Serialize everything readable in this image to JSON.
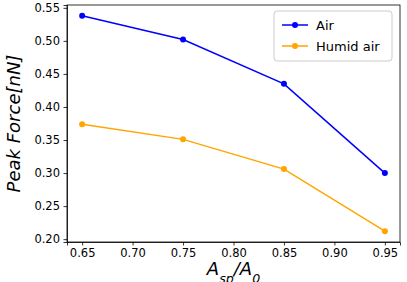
{
  "chart_data": {
    "type": "line",
    "x_label": "Asp/A0",
    "y_label": "Peak Force[nN]",
    "x": [
      0.65,
      0.75,
      0.85,
      0.95
    ],
    "series": [
      {
        "name": "Air",
        "color": "#0000ff",
        "marker": "circle",
        "values": [
          0.538,
          0.502,
          0.435,
          0.3
        ]
      },
      {
        "name": "Humid air",
        "color": "#ffa500",
        "marker": "circle",
        "values": [
          0.374,
          0.351,
          0.306,
          0.212
        ]
      }
    ],
    "xlim": [
      0.635,
      0.965
    ],
    "xticks": [
      0.65,
      {
        "value": 0.7,
        "label": "0.70"
      },
      0.75,
      {
        "value": 0.8,
        "label": "0.80"
      },
      0.85,
      {
        "value": 0.9,
        "label": "0.90"
      },
      0.95
    ],
    "ylim": [
      0.1957,
      0.5543
    ],
    "yticks": [
      {
        "value": 0.2,
        "label": "0.20"
      },
      0.25,
      {
        "value": 0.3,
        "label": "0.30"
      },
      0.35,
      {
        "value": 0.4,
        "label": "0.40"
      },
      0.45,
      {
        "value": 0.5,
        "label": "0.50"
      },
      0.55
    ],
    "grid": false,
    "legend": "upper right"
  }
}
